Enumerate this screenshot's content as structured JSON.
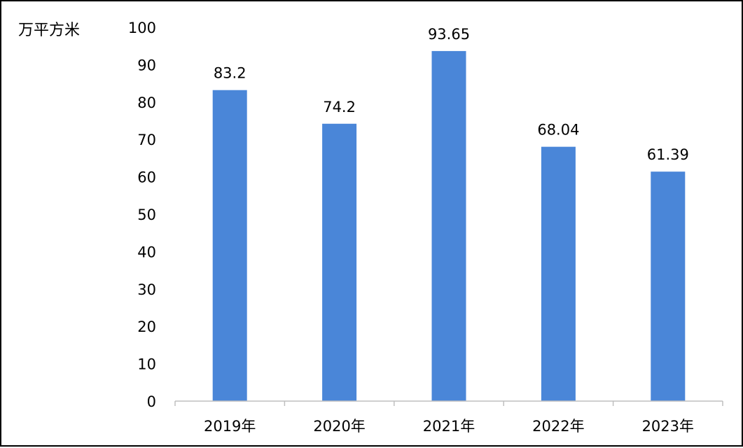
{
  "chart_data": {
    "type": "bar",
    "unit_label": "万平方米",
    "categories": [
      "2019年",
      "2020年",
      "2021年",
      "2022年",
      "2023年"
    ],
    "values": [
      83.2,
      74.2,
      93.65,
      68.04,
      61.39
    ],
    "data_labels": [
      "83.2",
      "74.2",
      "93.65",
      "68.04",
      "61.39"
    ],
    "y_ticks": [
      "0",
      "10",
      "20",
      "30",
      "40",
      "50",
      "60",
      "70",
      "80",
      "90",
      "100"
    ],
    "ylim": [
      0,
      100
    ],
    "title": "",
    "xlabel": "",
    "ylabel": "",
    "grid": false,
    "legend": "none",
    "bar_color": "#4A86D8",
    "axis_color": "#BFBFBF"
  }
}
